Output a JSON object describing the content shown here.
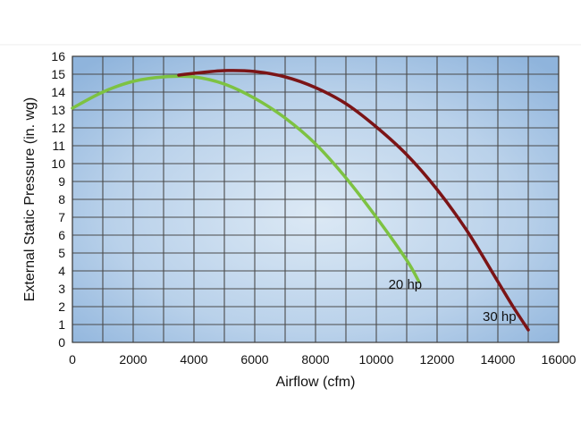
{
  "chart_data": {
    "type": "line",
    "xlabel": "Airflow (cfm)",
    "ylabel": "External Static Pressure (in. wg)",
    "xlim": [
      0,
      16000
    ],
    "ylim": [
      0,
      16
    ],
    "x_ticks": [
      0,
      2000,
      4000,
      6000,
      8000,
      10000,
      12000,
      14000,
      16000
    ],
    "y_ticks": [
      0,
      1,
      2,
      3,
      4,
      5,
      6,
      7,
      8,
      9,
      10,
      11,
      12,
      13,
      14,
      15,
      16
    ],
    "x_grid_step": 1000,
    "y_grid_step": 1,
    "grid": true,
    "series": [
      {
        "name": "20 hp",
        "color": "#7dc242",
        "x": [
          0,
          1000,
          2000,
          3000,
          4000,
          5000,
          6000,
          7000,
          8000,
          9000,
          10000,
          11000,
          11400
        ],
        "y": [
          13.1,
          14.0,
          14.6,
          14.85,
          14.85,
          14.45,
          13.65,
          12.55,
          11.1,
          9.2,
          7.0,
          4.6,
          3.4
        ]
      },
      {
        "name": "30 hp",
        "color": "#7b1416",
        "x": [
          3500,
          4000,
          5000,
          6000,
          7000,
          8000,
          9000,
          10000,
          11000,
          12000,
          13000,
          14000,
          14500,
          15000
        ],
        "y": [
          14.95,
          15.05,
          15.2,
          15.15,
          14.85,
          14.25,
          13.35,
          12.05,
          10.5,
          8.55,
          6.2,
          3.4,
          2.0,
          0.7
        ]
      }
    ],
    "series_label_positions": {
      "20 hp": [
        10400,
        3.0
      ],
      "30 hp": [
        13500,
        1.2
      ]
    }
  }
}
